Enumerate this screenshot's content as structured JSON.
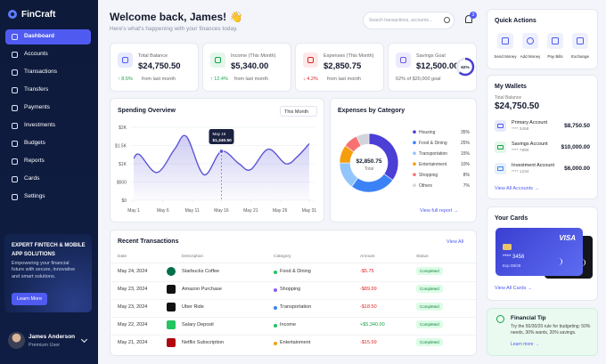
{
  "sidebar": {
    "brand": "FinCraft",
    "nav": [
      "Dashboard",
      "Accounts",
      "Transactions",
      "Transfers",
      "Payments",
      "Investments",
      "Budgets",
      "Reports",
      "Cards",
      "Settings"
    ],
    "promo": {
      "title": "EXPERT FINTECH & MOBILE APP SOLUTIONS",
      "text": "Empowering your financial future with secure, innovative and smart solutions.",
      "button": "Learn More"
    },
    "user": {
      "name": "James Anderson",
      "role": "Premium User"
    }
  },
  "header": {
    "title": "Welcome back, James! 👋",
    "subtitle": "Here's what's happening with your finances today.",
    "search_placeholder": "Search transactions, accounts...",
    "notifications": 3
  },
  "stats": [
    {
      "label": "Total Balance",
      "value": "$24,750.50",
      "change": "↑ 8.5%",
      "note": "from last month"
    },
    {
      "label": "Income (This Month)",
      "value": "$5,340.00",
      "change": "↑ 12.4%",
      "note": "from last month"
    },
    {
      "label": "Expenses (This Month)",
      "value": "$2,850.75",
      "change": "↓ 4.2%",
      "note": "from last month"
    },
    {
      "label": "Savings Goal",
      "value": "$12,500.00",
      "note": "62% of $20,000 goal",
      "progress": 62,
      "progress_label": "62%"
    }
  ],
  "spending_overview": {
    "title": "Spending Overview",
    "period": "This Month",
    "type": "line",
    "color": "#5b55d6",
    "x": [
      1,
      2,
      5,
      8,
      10,
      13,
      16,
      19,
      21,
      24,
      27,
      29,
      31
    ],
    "values": [
      1150,
      1250,
      760,
      1400,
      1750,
      700,
      1340.5,
      1000,
      840,
      1400,
      1000,
      1200,
      1550
    ],
    "xlim": [
      1,
      31
    ],
    "xticks": [
      {
        "value": 1,
        "label": "May 1"
      },
      {
        "value": 6,
        "label": "May 6"
      },
      {
        "value": 11,
        "label": "May 11"
      },
      {
        "value": 16,
        "label": "May 16"
      },
      {
        "value": 21,
        "label": "May 21"
      },
      {
        "value": 26,
        "label": "May 26"
      },
      {
        "value": 31,
        "label": "May 31"
      }
    ],
    "ylim": [
      0,
      2000
    ],
    "yticks": [
      {
        "value": 0,
        "label": "$0"
      },
      {
        "value": 500,
        "label": "$500"
      },
      {
        "value": 1000,
        "label": "$1K"
      },
      {
        "value": 1500,
        "label": "$1.5K"
      },
      {
        "value": 2000,
        "label": "$2K"
      }
    ],
    "grid": true,
    "highlight": 6,
    "tooltip": {
      "date": "May 16",
      "value": "$1,340.50"
    }
  },
  "expenses": {
    "title": "Expenses by Category",
    "type": "pie",
    "categories": [
      "Housing",
      "Food & Dining",
      "Transportation",
      "Entertainment",
      "Shopping",
      "Others"
    ],
    "values": [
      35,
      25,
      15,
      10,
      8,
      7
    ],
    "value_labels": [
      "35%",
      "25%",
      "15%",
      "10%",
      "8%",
      "7%"
    ],
    "colors": [
      "#4b3fd6",
      "#3b82f6",
      "#93c5fd",
      "#f59e0b",
      "#f87171",
      "#d1d5db"
    ],
    "center_value": "$2,850.75",
    "center_label": "Total",
    "link": "View full report →"
  },
  "transactions": {
    "title": "Recent Transactions",
    "link": "View All",
    "columns": [
      "Date",
      "Description",
      "Category",
      "Amount",
      "Status"
    ],
    "rows": [
      [
        "May 24, 2024",
        "Starbucks Coffee",
        "Food & Dining",
        "-$5.75",
        "Completed"
      ],
      [
        "May 23, 2024",
        "Amazon Purchase",
        "Shopping",
        "-$89.99",
        "Completed"
      ],
      [
        "May 23, 2024",
        "Uber Ride",
        "Transportation",
        "-$18.50",
        "Completed"
      ],
      [
        "May 22, 2024",
        "Salary Deposit",
        "Income",
        "+$5,340.00",
        "Completed"
      ],
      [
        "May 21, 2024",
        "Netflix Subscription",
        "Entertainment",
        "-$15.99",
        "Completed"
      ]
    ]
  },
  "quick_actions": {
    "title": "Quick Actions",
    "items": [
      "Send Money",
      "Add Money",
      "Pay Bills",
      "Exchange"
    ]
  },
  "wallets": {
    "title": "My Wallets",
    "total_label": "Total Balance",
    "total": "$24,750.50",
    "accounts": [
      {
        "name": "Primary Account",
        "number": "**** 3456",
        "balance": "$8,750.50"
      },
      {
        "name": "Savings Account",
        "number": "**** 7890",
        "balance": "$10,000.00"
      },
      {
        "name": "Investment Account",
        "number": "**** 1234",
        "balance": "$6,000.00"
      }
    ],
    "link": "View All Accounts →"
  },
  "cards": {
    "title": "Your Cards",
    "brand": "VISA",
    "number": "**** 3456",
    "expiry": "Exp 08/28",
    "link": "View All Cards →"
  },
  "tip": {
    "title": "Financial Tip",
    "text": "Try the 50/30/20 rule for budgeting: 50% needs, 30% wants, 20% savings.",
    "link": "Learn more →"
  }
}
